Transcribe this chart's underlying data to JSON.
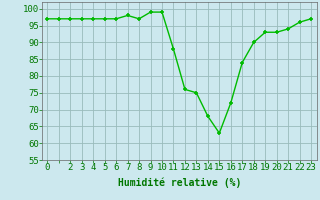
{
  "x": [
    0,
    1,
    2,
    3,
    4,
    5,
    6,
    7,
    8,
    9,
    10,
    11,
    12,
    13,
    14,
    15,
    16,
    17,
    18,
    19,
    20,
    21,
    22,
    23
  ],
  "y": [
    97,
    97,
    97,
    97,
    97,
    97,
    97,
    98,
    97,
    99,
    99,
    88,
    76,
    75,
    68,
    63,
    72,
    84,
    90,
    93,
    93,
    94,
    96,
    97
  ],
  "line_color": "#00bb00",
  "marker": "+",
  "bg_color": "#cce8ee",
  "grid_color": "#99bbbb",
  "xlabel": "Humidité relative (%)",
  "xlabel_color": "#007700",
  "tick_color": "#007700",
  "ylim": [
    55,
    102
  ],
  "yticks": [
    55,
    60,
    65,
    70,
    75,
    80,
    85,
    90,
    95,
    100
  ],
  "xtick_labels": [
    "0",
    "",
    "2",
    "3",
    "4",
    "5",
    "6",
    "7",
    "8",
    "9",
    "10",
    "11",
    "12",
    "13",
    "14",
    "15",
    "16",
    "17",
    "18",
    "19",
    "20",
    "21",
    "22",
    "23"
  ],
  "axis_fontsize": 7,
  "tick_fontsize": 6.5
}
